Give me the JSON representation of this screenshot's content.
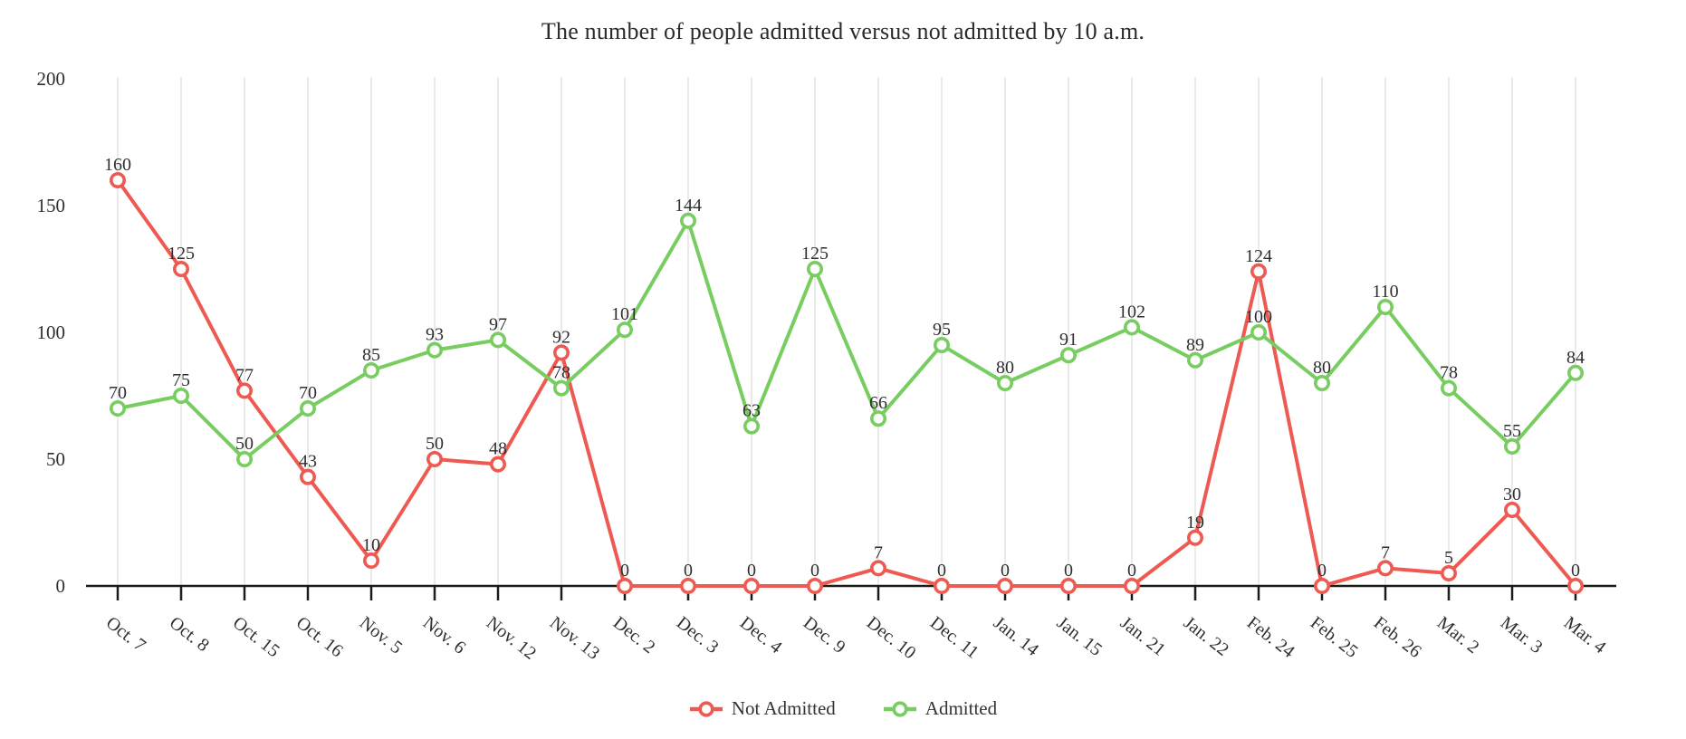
{
  "title": "The number of people admitted versus not admitted by 10 a.m.",
  "colors": {
    "not_admitted": "#ee5a52",
    "admitted": "#77cd60",
    "grid": "#e4e4e4",
    "axis": "#1a1a1a",
    "text": "#2f2f2f"
  },
  "chart_data": {
    "type": "line",
    "title": "The number of people admitted versus not admitted by 10 a.m.",
    "xlabel": "",
    "ylabel": "",
    "ylim": [
      0,
      200
    ],
    "yticks": [
      0,
      50,
      100,
      150,
      200
    ],
    "grid": "vertical-only",
    "legend_position": "bottom-center",
    "marker": "open-circle",
    "point_labels": true,
    "categories": [
      "Oct. 7",
      "Oct. 8",
      "Oct. 15",
      "Oct. 16",
      "Nov. 5",
      "Nov. 6",
      "Nov. 12",
      "Nov. 13",
      "Dec. 2",
      "Dec. 3",
      "Dec. 4",
      "Dec. 9",
      "Dec. 10",
      "Dec. 11",
      "Jan. 14",
      "Jan. 15",
      "Jan. 21",
      "Jan. 22",
      "Feb. 24",
      "Feb. 25",
      "Feb. 26",
      "Mar. 2",
      "Mar. 3",
      "Mar. 4"
    ],
    "series": [
      {
        "name": "Not Admitted",
        "color": "#ee5a52",
        "values": [
          160,
          125,
          77,
          43,
          10,
          50,
          48,
          92,
          0,
          0,
          0,
          0,
          7,
          0,
          0,
          0,
          0,
          19,
          124,
          0,
          7,
          5,
          30,
          0
        ]
      },
      {
        "name": "Admitted",
        "color": "#77cd60",
        "values": [
          70,
          75,
          50,
          70,
          85,
          93,
          97,
          78,
          101,
          144,
          63,
          125,
          66,
          95,
          80,
          91,
          102,
          89,
          100,
          80,
          110,
          78,
          55,
          84
        ]
      }
    ]
  }
}
